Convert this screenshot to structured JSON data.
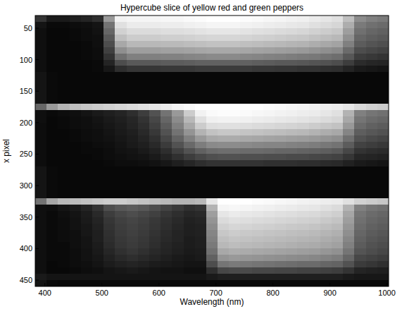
{
  "chart_data": {
    "type": "heatmap",
    "title": "Hypercube slice of yellow red and green peppers",
    "x_label": "Wavelength (nm)",
    "y_label": "x pixel",
    "xlim": [
      383,
      1003
    ],
    "ylim": [
      30,
      460
    ],
    "xticks": [
      400,
      500,
      600,
      700,
      800,
      900,
      1000
    ],
    "yticks": [
      50,
      100,
      150,
      200,
      250,
      300,
      350,
      400,
      450
    ],
    "color": "#ffffff",
    "value_range": [
      0,
      100
    ],
    "x": [
      393,
      413,
      433,
      453,
      473,
      493,
      513,
      533,
      553,
      573,
      593,
      613,
      633,
      653,
      673,
      693,
      713,
      733,
      753,
      773,
      793,
      813,
      833,
      853,
      873,
      893,
      913,
      933,
      953,
      973,
      993
    ],
    "y": [
      35,
      45,
      55,
      65,
      75,
      85,
      95,
      105,
      115,
      125,
      135,
      145,
      155,
      165,
      175,
      185,
      195,
      205,
      215,
      225,
      235,
      245,
      255,
      265,
      275,
      285,
      295,
      305,
      315,
      325,
      335,
      345,
      355,
      365,
      375,
      385,
      395,
      405,
      415,
      425,
      435,
      445,
      455
    ],
    "values": [
      [
        20,
        10,
        10,
        12,
        14,
        18,
        60,
        95,
        96,
        96,
        96,
        97,
        97,
        98,
        99,
        100,
        100,
        100,
        99,
        98,
        97,
        96,
        95,
        94,
        92,
        90,
        88,
        75,
        55,
        50,
        48
      ],
      [
        8,
        4,
        4,
        5,
        6,
        8,
        45,
        88,
        92,
        92,
        92,
        93,
        93,
        94,
        95,
        96,
        96,
        96,
        95,
        94,
        93,
        92,
        91,
        90,
        88,
        86,
        84,
        68,
        48,
        44,
        42
      ],
      [
        6,
        3,
        3,
        4,
        5,
        7,
        40,
        82,
        86,
        86,
        86,
        87,
        87,
        88,
        89,
        90,
        90,
        90,
        89,
        88,
        87,
        86,
        85,
        84,
        82,
        80,
        78,
        62,
        44,
        40,
        38
      ],
      [
        6,
        3,
        3,
        4,
        5,
        6,
        35,
        75,
        80,
        80,
        80,
        81,
        81,
        82,
        83,
        84,
        84,
        84,
        83,
        82,
        81,
        80,
        79,
        78,
        76,
        74,
        72,
        57,
        40,
        37,
        35
      ],
      [
        6,
        3,
        3,
        3,
        4,
        6,
        30,
        66,
        72,
        72,
        72,
        73,
        73,
        74,
        75,
        76,
        76,
        76,
        75,
        74,
        73,
        72,
        71,
        70,
        68,
        66,
        64,
        50,
        36,
        33,
        31
      ],
      [
        6,
        3,
        3,
        3,
        4,
        5,
        25,
        56,
        62,
        62,
        62,
        63,
        63,
        64,
        65,
        66,
        66,
        66,
        65,
        64,
        63,
        62,
        61,
        60,
        58,
        56,
        54,
        42,
        30,
        28,
        26
      ],
      [
        6,
        3,
        3,
        3,
        4,
        5,
        20,
        44,
        50,
        50,
        50,
        51,
        51,
        52,
        53,
        54,
        54,
        54,
        53,
        52,
        51,
        50,
        49,
        48,
        47,
        45,
        43,
        34,
        24,
        22,
        20
      ],
      [
        6,
        3,
        3,
        3,
        3,
        4,
        14,
        30,
        35,
        35,
        35,
        36,
        36,
        37,
        38,
        38,
        38,
        38,
        38,
        37,
        36,
        35,
        35,
        34,
        33,
        32,
        30,
        24,
        17,
        15,
        14
      ],
      [
        6,
        3,
        3,
        3,
        3,
        4,
        9,
        18,
        21,
        21,
        21,
        22,
        22,
        22,
        23,
        23,
        23,
        23,
        23,
        22,
        22,
        21,
        21,
        20,
        20,
        19,
        18,
        14,
        10,
        9,
        8
      ],
      [
        8,
        4,
        3,
        3,
        3,
        3,
        3,
        3,
        3,
        3,
        3,
        3,
        3,
        3,
        3,
        3,
        3,
        3,
        3,
        3,
        3,
        3,
        3,
        3,
        3,
        3,
        3,
        3,
        3,
        3,
        3
      ],
      [
        8,
        4,
        3,
        3,
        3,
        3,
        3,
        3,
        3,
        3,
        3,
        3,
        3,
        3,
        3,
        3,
        3,
        3,
        3,
        3,
        3,
        3,
        3,
        3,
        3,
        3,
        3,
        3,
        3,
        3,
        3
      ],
      [
        8,
        4,
        3,
        3,
        3,
        3,
        3,
        3,
        3,
        3,
        3,
        3,
        3,
        3,
        3,
        3,
        3,
        3,
        3,
        3,
        3,
        3,
        3,
        3,
        3,
        3,
        3,
        3,
        3,
        3,
        3
      ],
      [
        8,
        4,
        3,
        3,
        3,
        3,
        3,
        3,
        3,
        3,
        3,
        3,
        3,
        3,
        3,
        3,
        3,
        3,
        3,
        3,
        3,
        3,
        3,
        3,
        3,
        3,
        3,
        3,
        3,
        3,
        3
      ],
      [
        8,
        4,
        3,
        3,
        3,
        3,
        3,
        3,
        3,
        3,
        3,
        3,
        3,
        3,
        3,
        3,
        3,
        3,
        3,
        3,
        3,
        3,
        3,
        3,
        3,
        3,
        3,
        3,
        3,
        3,
        3
      ],
      [
        40,
        60,
        70,
        75,
        78,
        80,
        82,
        84,
        86,
        88,
        90,
        93,
        96,
        98,
        100,
        100,
        100,
        100,
        100,
        100,
        99,
        98,
        97,
        96,
        95,
        94,
        93,
        90,
        85,
        82,
        80
      ],
      [
        6,
        4,
        5,
        6,
        8,
        10,
        12,
        14,
        18,
        24,
        32,
        45,
        60,
        80,
        95,
        98,
        99,
        99,
        98,
        97,
        96,
        95,
        94,
        93,
        92,
        90,
        88,
        70,
        50,
        46,
        44
      ],
      [
        6,
        3,
        4,
        5,
        6,
        8,
        10,
        12,
        15,
        20,
        28,
        40,
        55,
        72,
        88,
        94,
        95,
        95,
        94,
        93,
        92,
        91,
        90,
        89,
        88,
        86,
        84,
        66,
        46,
        42,
        40
      ],
      [
        5,
        3,
        4,
        5,
        6,
        7,
        9,
        11,
        14,
        18,
        25,
        36,
        50,
        66,
        80,
        87,
        88,
        88,
        87,
        86,
        85,
        84,
        83,
        82,
        80,
        78,
        76,
        60,
        42,
        38,
        36
      ],
      [
        5,
        3,
        3,
        4,
        5,
        6,
        8,
        10,
        12,
        16,
        22,
        32,
        45,
        58,
        70,
        76,
        78,
        78,
        77,
        76,
        75,
        74,
        73,
        72,
        70,
        68,
        66,
        52,
        37,
        34,
        32
      ],
      [
        5,
        3,
        3,
        4,
        5,
        6,
        7,
        9,
        11,
        14,
        19,
        28,
        39,
        50,
        60,
        66,
        67,
        67,
        66,
        65,
        64,
        63,
        62,
        61,
        60,
        58,
        56,
        44,
        32,
        29,
        27
      ],
      [
        5,
        3,
        3,
        3,
        4,
        5,
        6,
        8,
        10,
        12,
        16,
        23,
        32,
        41,
        49,
        54,
        55,
        55,
        54,
        53,
        52,
        52,
        51,
        50,
        49,
        47,
        45,
        36,
        26,
        24,
        22
      ],
      [
        5,
        3,
        3,
        3,
        4,
        4,
        5,
        7,
        8,
        10,
        13,
        18,
        25,
        32,
        38,
        42,
        43,
        43,
        42,
        42,
        41,
        40,
        40,
        39,
        38,
        37,
        35,
        28,
        20,
        18,
        17
      ],
      [
        5,
        3,
        3,
        3,
        3,
        4,
        5,
        6,
        7,
        8,
        10,
        14,
        19,
        24,
        28,
        31,
        32,
        32,
        31,
        31,
        30,
        30,
        29,
        29,
        28,
        27,
        26,
        21,
        15,
        14,
        13
      ],
      [
        5,
        3,
        3,
        3,
        3,
        3,
        4,
        5,
        5,
        6,
        7,
        9,
        12,
        15,
        18,
        20,
        20,
        20,
        20,
        20,
        19,
        19,
        19,
        18,
        18,
        17,
        16,
        13,
        10,
        9,
        8
      ],
      [
        8,
        4,
        3,
        3,
        3,
        3,
        3,
        3,
        3,
        3,
        3,
        3,
        3,
        3,
        3,
        3,
        3,
        3,
        3,
        3,
        3,
        3,
        3,
        3,
        3,
        3,
        3,
        3,
        3,
        3,
        3
      ],
      [
        8,
        4,
        3,
        3,
        3,
        3,
        3,
        3,
        3,
        3,
        3,
        3,
        3,
        3,
        3,
        3,
        3,
        3,
        3,
        3,
        3,
        3,
        3,
        3,
        3,
        3,
        3,
        3,
        3,
        3,
        3
      ],
      [
        8,
        4,
        3,
        3,
        3,
        3,
        3,
        3,
        3,
        3,
        3,
        3,
        3,
        3,
        3,
        3,
        3,
        3,
        3,
        3,
        3,
        3,
        3,
        3,
        3,
        3,
        3,
        3,
        3,
        3,
        3
      ],
      [
        8,
        4,
        3,
        3,
        3,
        3,
        3,
        3,
        3,
        3,
        3,
        3,
        3,
        3,
        3,
        3,
        3,
        3,
        3,
        3,
        3,
        3,
        3,
        3,
        3,
        3,
        3,
        3,
        3,
        3,
        3
      ],
      [
        8,
        4,
        3,
        3,
        3,
        3,
        3,
        3,
        3,
        3,
        3,
        3,
        3,
        3,
        3,
        3,
        3,
        3,
        3,
        3,
        3,
        3,
        3,
        3,
        3,
        3,
        3,
        3,
        3,
        3,
        3
      ],
      [
        45,
        65,
        72,
        74,
        76,
        78,
        80,
        80,
        78,
        76,
        74,
        72,
        70,
        70,
        72,
        90,
        100,
        100,
        100,
        99,
        98,
        97,
        96,
        95,
        94,
        93,
        92,
        88,
        82,
        80,
        78
      ],
      [
        6,
        5,
        8,
        10,
        14,
        20,
        30,
        34,
        36,
        34,
        30,
        26,
        22,
        18,
        20,
        70,
        96,
        97,
        96,
        95,
        94,
        93,
        92,
        91,
        90,
        88,
        86,
        70,
        50,
        46,
        44
      ],
      [
        6,
        4,
        6,
        8,
        11,
        16,
        24,
        28,
        30,
        28,
        25,
        21,
        18,
        15,
        16,
        62,
        90,
        92,
        91,
        90,
        89,
        88,
        87,
        86,
        85,
        83,
        81,
        65,
        46,
        42,
        40
      ],
      [
        6,
        4,
        5,
        7,
        10,
        14,
        21,
        25,
        27,
        25,
        22,
        19,
        16,
        13,
        14,
        58,
        86,
        88,
        87,
        86,
        85,
        84,
        83,
        82,
        81,
        79,
        77,
        62,
        44,
        40,
        38
      ],
      [
        6,
        4,
        5,
        7,
        9,
        13,
        20,
        24,
        26,
        24,
        21,
        18,
        15,
        12,
        13,
        55,
        82,
        84,
        83,
        82,
        81,
        80,
        79,
        78,
        77,
        75,
        73,
        59,
        42,
        38,
        36
      ],
      [
        6,
        4,
        5,
        6,
        9,
        12,
        19,
        23,
        25,
        23,
        20,
        17,
        14,
        12,
        13,
        52,
        78,
        80,
        79,
        78,
        77,
        76,
        75,
        74,
        73,
        71,
        69,
        56,
        40,
        36,
        34
      ],
      [
        6,
        4,
        5,
        6,
        8,
        12,
        18,
        22,
        24,
        22,
        19,
        16,
        14,
        11,
        12,
        50,
        75,
        77,
        76,
        75,
        74,
        73,
        72,
        71,
        70,
        68,
        66,
        53,
        38,
        34,
        32
      ],
      [
        6,
        4,
        4,
        6,
        8,
        11,
        17,
        21,
        23,
        21,
        18,
        15,
        13,
        11,
        12,
        48,
        72,
        74,
        73,
        72,
        71,
        70,
        69,
        68,
        67,
        65,
        63,
        50,
        36,
        32,
        30
      ],
      [
        6,
        4,
        4,
        5,
        7,
        10,
        15,
        19,
        21,
        19,
        16,
        14,
        12,
        10,
        11,
        44,
        66,
        68,
        67,
        66,
        65,
        64,
        63,
        62,
        61,
        59,
        57,
        46,
        33,
        30,
        28
      ],
      [
        6,
        4,
        4,
        5,
        7,
        9,
        13,
        16,
        18,
        16,
        14,
        12,
        10,
        9,
        10,
        38,
        58,
        60,
        59,
        58,
        57,
        56,
        55,
        54,
        53,
        51,
        49,
        40,
        28,
        26,
        24
      ],
      [
        6,
        3,
        4,
        5,
        6,
        8,
        11,
        13,
        14,
        13,
        11,
        10,
        9,
        8,
        8,
        30,
        46,
        48,
        47,
        46,
        45,
        44,
        43,
        42,
        42,
        40,
        39,
        32,
        23,
        21,
        19
      ],
      [
        6,
        3,
        3,
        4,
        5,
        6,
        8,
        9,
        10,
        9,
        8,
        7,
        7,
        6,
        6,
        18,
        28,
        29,
        29,
        28,
        28,
        27,
        27,
        26,
        26,
        25,
        24,
        20,
        14,
        13,
        12
      ],
      [
        10,
        8,
        8,
        8,
        8,
        8,
        8,
        8,
        8,
        8,
        8,
        8,
        8,
        8,
        8,
        10,
        12,
        12,
        12,
        12,
        12,
        12,
        12,
        12,
        12,
        12,
        12,
        10,
        9,
        9,
        9
      ],
      [
        8,
        4,
        3,
        3,
        3,
        3,
        3,
        3,
        3,
        3,
        3,
        3,
        3,
        3,
        3,
        3,
        3,
        3,
        3,
        3,
        3,
        3,
        3,
        3,
        3,
        3,
        3,
        3,
        3,
        3,
        3
      ]
    ]
  }
}
